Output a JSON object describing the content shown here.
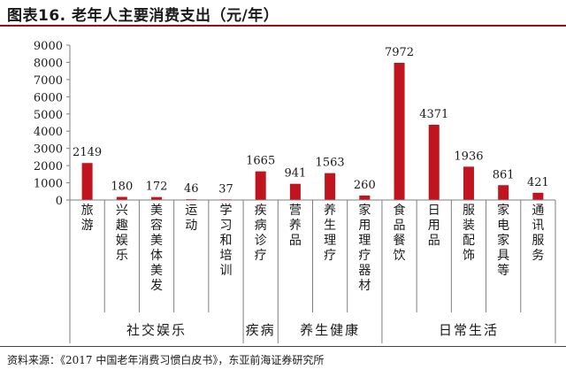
{
  "header": {
    "title": "图表16. 老年人主要消费支出（元/年）"
  },
  "footer": {
    "source": "资料来源：《2017 中国老年消费习惯白皮书》，东亚前海证券研究所"
  },
  "theme": {
    "bar_color": "#c0141f",
    "rule_color": "#9c0d1c"
  },
  "chart_data": {
    "type": "bar",
    "title": "",
    "xlabel": "",
    "ylabel": "",
    "ylim": [
      0,
      9000
    ],
    "yticks": [
      "0",
      "1000",
      "2000",
      "3000",
      "4000",
      "5000",
      "6000",
      "7000",
      "8000",
      "9000"
    ],
    "categories": [
      "旅游",
      "兴趣娱乐",
      "美容美体美发",
      "运动",
      "学习和培训",
      "疾病诊疗",
      "营养品",
      "养生理疗",
      "家用理疗器材",
      "食品餐饮",
      "日用品",
      "服装配饰",
      "家电家具等",
      "通讯服务"
    ],
    "values": [
      2149,
      180,
      172,
      46,
      37,
      1665,
      941,
      1563,
      260,
      7972,
      4371,
      1936,
      861,
      421
    ],
    "value_labels": [
      "2149",
      "180",
      "172",
      "46",
      "37",
      "1665",
      "941",
      "1563",
      "260",
      "7972",
      "4371",
      "1936",
      "861",
      "421"
    ],
    "groups": [
      {
        "label": "社交娱乐",
        "start": 0,
        "end": 4
      },
      {
        "label": "疾病",
        "start": 5,
        "end": 5
      },
      {
        "label": "养生健康",
        "start": 6,
        "end": 8
      },
      {
        "label": "日常生活",
        "start": 9,
        "end": 13
      }
    ],
    "grid": false,
    "legend": "none"
  }
}
